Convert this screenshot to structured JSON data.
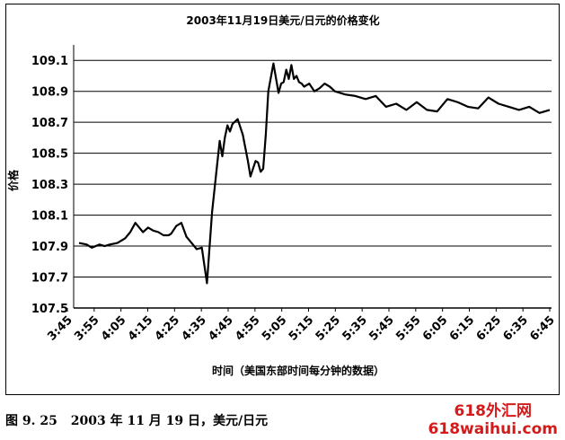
{
  "chart_data": {
    "type": "line",
    "title": "2003年11月19日美元/日元的价格变化",
    "xlabel": "时间（美国东部时间每分钟的数据）",
    "ylabel": "价格",
    "ylim": [
      107.5,
      109.2
    ],
    "yticks": [
      "107.5",
      "107.7",
      "107.9",
      "108.1",
      "108.3",
      "108.5",
      "108.7",
      "108.9",
      "109.1"
    ],
    "xticks": [
      "3:45",
      "3:55",
      "4:05",
      "4:15",
      "4:25",
      "4:35",
      "4:45",
      "4:55",
      "5:05",
      "5:15",
      "5:25",
      "5:35",
      "5:45",
      "5:55",
      "6:05",
      "6:15",
      "6:25",
      "6:35",
      "6:45"
    ],
    "grid": true,
    "legend": "none",
    "line_color": "#000000",
    "series": [
      {
        "x": [
          0,
          3,
          5,
          8,
          10,
          12,
          15,
          18,
          20,
          22,
          25,
          27,
          29,
          31,
          33,
          35,
          36,
          38,
          40,
          42,
          44,
          46,
          48,
          50,
          52,
          54,
          55,
          56,
          57,
          58,
          59,
          60,
          62,
          64,
          66,
          67,
          69,
          70,
          71,
          72,
          73,
          74,
          76,
          78,
          79,
          80,
          81,
          82,
          83,
          84,
          85,
          86,
          87,
          88,
          90,
          92,
          94,
          96,
          98,
          100,
          104,
          108,
          112,
          116,
          120,
          124,
          128,
          132,
          136,
          140,
          144,
          148,
          152,
          156,
          160,
          164,
          168,
          172,
          176,
          180,
          184
        ],
        "y": [
          107.92,
          107.91,
          107.89,
          107.91,
          107.9,
          107.91,
          107.92,
          107.95,
          107.99,
          108.05,
          107.99,
          108.02,
          108.0,
          107.99,
          107.97,
          107.97,
          107.98,
          108.03,
          108.05,
          107.96,
          107.92,
          107.88,
          107.89,
          107.66,
          108.12,
          108.43,
          108.58,
          108.48,
          108.6,
          108.68,
          108.64,
          108.69,
          108.72,
          108.62,
          108.45,
          108.35,
          108.45,
          108.44,
          108.38,
          108.4,
          108.62,
          108.9,
          109.08,
          108.89,
          108.95,
          108.96,
          109.04,
          108.98,
          109.07,
          108.98,
          109.0,
          108.96,
          108.95,
          108.93,
          108.95,
          108.9,
          108.92,
          108.95,
          108.93,
          108.9,
          108.88,
          108.87,
          108.85,
          108.87,
          108.8,
          108.82,
          108.78,
          108.83,
          108.78,
          108.77,
          108.85,
          108.83,
          108.8,
          108.79,
          108.86,
          108.82,
          108.8,
          108.78,
          108.8,
          108.76,
          108.78
        ]
      }
    ]
  },
  "caption": {
    "figure_no": "图 9. 25",
    "text": "2003 年 11 月 19 日，美元/日元"
  },
  "watermark": {
    "line1": "618外汇网",
    "line2": "618waihui.com"
  }
}
